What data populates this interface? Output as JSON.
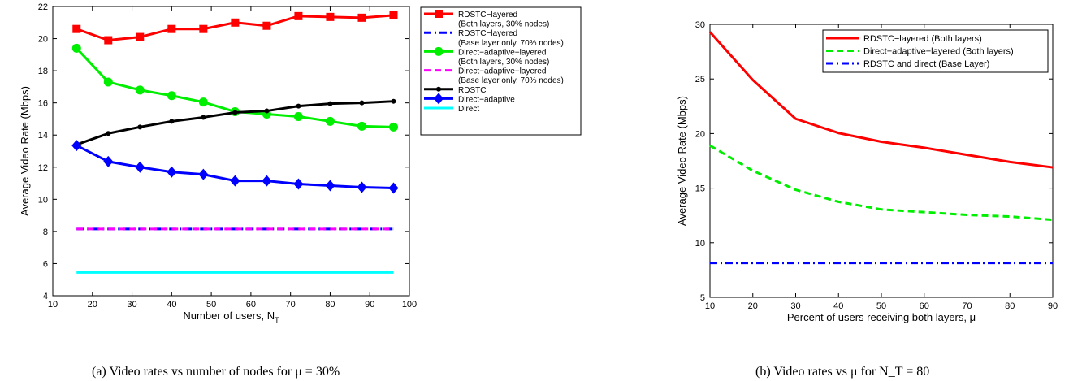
{
  "chart_data": [
    {
      "type": "line",
      "xlabel": "Number of users, N",
      "xlabel_sub": "T",
      "ylabel": "Average Video Rate (Mbps)",
      "xlim": [
        10,
        100
      ],
      "ylim": [
        4,
        22
      ],
      "xticks": [
        10,
        20,
        30,
        40,
        50,
        60,
        70,
        80,
        90,
        100
      ],
      "yticks": [
        4,
        6,
        8,
        10,
        12,
        14,
        16,
        18,
        20,
        22
      ],
      "legend_position": "right-outside",
      "caption": "(a) Video rates vs number of nodes for μ = 30%",
      "series": [
        {
          "name": "RDSTC−layered (Both layers, 30% nodes)",
          "legend_lines": [
            "RDSTC−layered",
            "(Both layers, 30% nodes)"
          ],
          "color": "#ff0000",
          "style": "solid",
          "marker": "square",
          "x": [
            16,
            24,
            32,
            40,
            48,
            56,
            64,
            72,
            80,
            88,
            96
          ],
          "y": [
            20.6,
            19.9,
            20.1,
            20.6,
            20.6,
            21.0,
            20.8,
            21.4,
            21.35,
            21.3,
            21.45
          ]
        },
        {
          "name": "RDSTC−layered (Base layer only, 70% nodes)",
          "legend_lines": [
            "RDSTC−layered",
            "(Base layer only, 70% nodes)"
          ],
          "color": "#0000ff",
          "style": "dashdot",
          "marker": "none",
          "x": [
            16,
            96
          ],
          "y": [
            8.15,
            8.15
          ]
        },
        {
          "name": "Direct−adaptive−layered (Both layers, 30% nodes)",
          "legend_lines": [
            "Direct−adaptive−layered",
            "(Both layers, 30% nodes)"
          ],
          "color": "#00ee00",
          "style": "solid",
          "marker": "circle",
          "x": [
            16,
            24,
            32,
            40,
            48,
            56,
            64,
            72,
            80,
            88,
            96
          ],
          "y": [
            19.4,
            17.3,
            16.8,
            16.45,
            16.05,
            15.45,
            15.3,
            15.15,
            14.85,
            14.55,
            14.5
          ]
        },
        {
          "name": "Direct−adaptive−layered (Base layer only, 70% nodes)",
          "legend_lines": [
            "Direct−adaptive−layered",
            "(Base layer only, 70% nodes)"
          ],
          "color": "#ff00ff",
          "style": "dashed",
          "marker": "none",
          "x": [
            16,
            96
          ],
          "y": [
            8.15,
            8.15
          ]
        },
        {
          "name": "RDSTC",
          "legend_lines": [
            "RDSTC"
          ],
          "color": "#000000",
          "style": "solid",
          "marker": "dot",
          "x": [
            16,
            24,
            32,
            40,
            48,
            56,
            64,
            72,
            80,
            88,
            96
          ],
          "y": [
            13.4,
            14.1,
            14.5,
            14.85,
            15.1,
            15.4,
            15.5,
            15.8,
            15.95,
            16.0,
            16.1
          ]
        },
        {
          "name": "Direct−adaptive",
          "legend_lines": [
            "Direct−adaptive"
          ],
          "color": "#0000ff",
          "style": "solid",
          "marker": "diamond",
          "x": [
            16,
            24,
            32,
            40,
            48,
            56,
            64,
            72,
            80,
            88,
            96
          ],
          "y": [
            13.35,
            12.35,
            12.0,
            11.7,
            11.55,
            11.15,
            11.15,
            10.95,
            10.85,
            10.75,
            10.7
          ]
        },
        {
          "name": "Direct",
          "legend_lines": [
            "Direct"
          ],
          "color": "#00ffff",
          "style": "solid",
          "marker": "none",
          "x": [
            16,
            96
          ],
          "y": [
            5.45,
            5.45
          ]
        }
      ]
    },
    {
      "type": "line",
      "xlabel": "Percent of users receiving both layers, μ",
      "ylabel": "Average Video Rate (Mbps)",
      "xlim": [
        10,
        90
      ],
      "ylim": [
        5,
        30
      ],
      "xticks": [
        10,
        20,
        30,
        40,
        50,
        60,
        70,
        80,
        90
      ],
      "yticks": [
        5,
        10,
        15,
        20,
        25,
        30
      ],
      "legend_position": "top-right",
      "caption": "(b) Video rates vs μ for N_T = 80",
      "series": [
        {
          "name": "RDSTC−layered (Both layers)",
          "color": "#ff0000",
          "style": "solid",
          "x": [
            10,
            20,
            30,
            40,
            50,
            60,
            70,
            80,
            90
          ],
          "y": [
            29.3,
            24.9,
            21.35,
            20.05,
            19.25,
            18.7,
            18.05,
            17.4,
            16.9
          ]
        },
        {
          "name": "Direct−adaptive−layered (Both layers)",
          "color": "#00ee00",
          "style": "dashed",
          "x": [
            10,
            20,
            30,
            40,
            50,
            60,
            70,
            80,
            90
          ],
          "y": [
            18.9,
            16.6,
            14.85,
            13.75,
            13.05,
            12.8,
            12.55,
            12.4,
            12.1
          ]
        },
        {
          "name": "RDSTC and direct (Base Layer)",
          "color": "#0000ff",
          "style": "dashdot",
          "x": [
            10,
            90
          ],
          "y": [
            8.15,
            8.15
          ]
        }
      ]
    }
  ]
}
